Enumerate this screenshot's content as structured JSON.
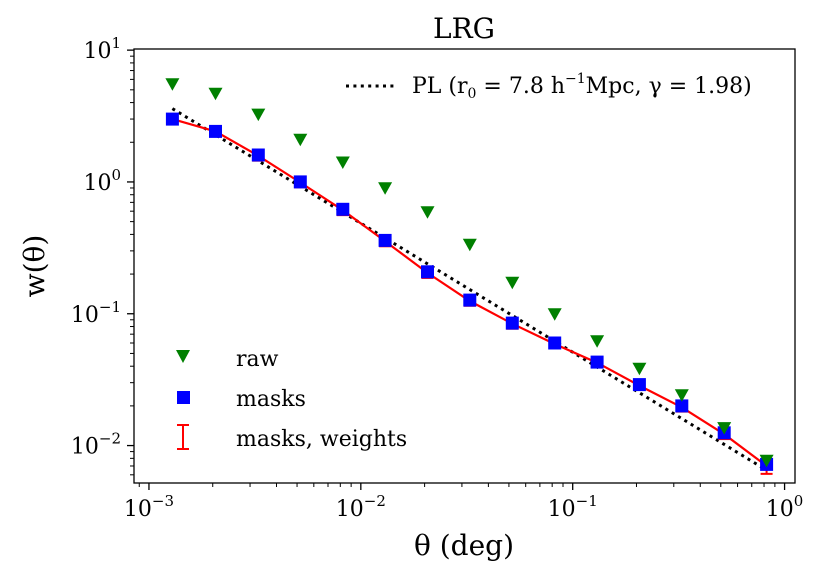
{
  "chart_data": {
    "type": "scatter",
    "title": "LRG",
    "xlabel": "θ  (deg)",
    "ylabel": "w(θ)",
    "xscale": "log",
    "yscale": "log",
    "xlim": [
      0.00085,
      1.12
    ],
    "ylim": [
      0.0052,
      10.2
    ],
    "x_ticks": [
      {
        "value": 0.001,
        "base": "10",
        "exp": "−3"
      },
      {
        "value": 0.01,
        "base": "10",
        "exp": "−2"
      },
      {
        "value": 0.1,
        "base": "10",
        "exp": "−1"
      },
      {
        "value": 1,
        "base": "10",
        "exp": "0"
      }
    ],
    "y_ticks": [
      {
        "value": 0.01,
        "base": "10",
        "exp": "−2"
      },
      {
        "value": 0.1,
        "base": "10",
        "exp": "−1"
      },
      {
        "value": 1,
        "base": "10",
        "exp": "0"
      },
      {
        "value": 10,
        "base": "10",
        "exp": "1"
      }
    ],
    "legend_placement": "lower-left",
    "series": [
      {
        "name": "raw",
        "marker": "triangle-down",
        "color": "#008000",
        "x": [
          0.00129,
          0.00206,
          0.00328,
          0.00518,
          0.00822,
          0.01302,
          0.02063,
          0.0327,
          0.05185,
          0.0822,
          0.1303,
          0.2065,
          0.3273,
          0.5189,
          0.8225
        ],
        "y": [
          5.6,
          4.75,
          3.3,
          2.13,
          1.43,
          0.91,
          0.6,
          0.34,
          0.175,
          0.101,
          0.063,
          0.039,
          0.0245,
          0.0138,
          0.0078
        ]
      },
      {
        "name": "masks",
        "marker": "square",
        "color": "#0000ff",
        "x": [
          0.00129,
          0.00206,
          0.00328,
          0.00518,
          0.00822,
          0.01302,
          0.02063,
          0.0327,
          0.05185,
          0.0822,
          0.1303,
          0.2065,
          0.3273,
          0.5189,
          0.8225
        ],
        "y": [
          3.0,
          2.42,
          1.6,
          1.0,
          0.62,
          0.36,
          0.208,
          0.127,
          0.085,
          0.06,
          0.043,
          0.029,
          0.02,
          0.0125,
          0.0072
        ]
      },
      {
        "name": "masks, weights",
        "marker": "errorbar-line",
        "color": "#ff0000",
        "x": [
          0.00129,
          0.00206,
          0.00328,
          0.00518,
          0.00822,
          0.01302,
          0.02063,
          0.0327,
          0.05185,
          0.0822,
          0.1303,
          0.2065,
          0.3273,
          0.5189,
          0.8225
        ],
        "y": [
          3.0,
          2.42,
          1.58,
          0.99,
          0.61,
          0.355,
          0.204,
          0.125,
          0.084,
          0.059,
          0.0425,
          0.0285,
          0.0195,
          0.0122,
          0.007
        ],
        "yerr": [
          0.26,
          0.2,
          0.13,
          0.08,
          0.05,
          0.03,
          0.017,
          0.01,
          0.007,
          0.004,
          0.003,
          0.002,
          0.0014,
          0.001,
          0.0009
        ]
      },
      {
        "name": "PL (r₀ = 7.8 h⁻¹Mpc, γ = 1.98)",
        "style": "dotted",
        "color": "#000000",
        "x": [
          0.00129,
          0.8225
        ],
        "y": [
          3.6,
          0.0065
        ]
      }
    ],
    "legend": {
      "pl_label": "PL (r",
      "pl_sub": "0",
      "pl_mid": " = 7.8 h",
      "pl_sup": "−1",
      "pl_end": "Mpc, γ = 1.98)",
      "raw": "raw",
      "masks": "masks",
      "weights": "masks, weights"
    }
  }
}
